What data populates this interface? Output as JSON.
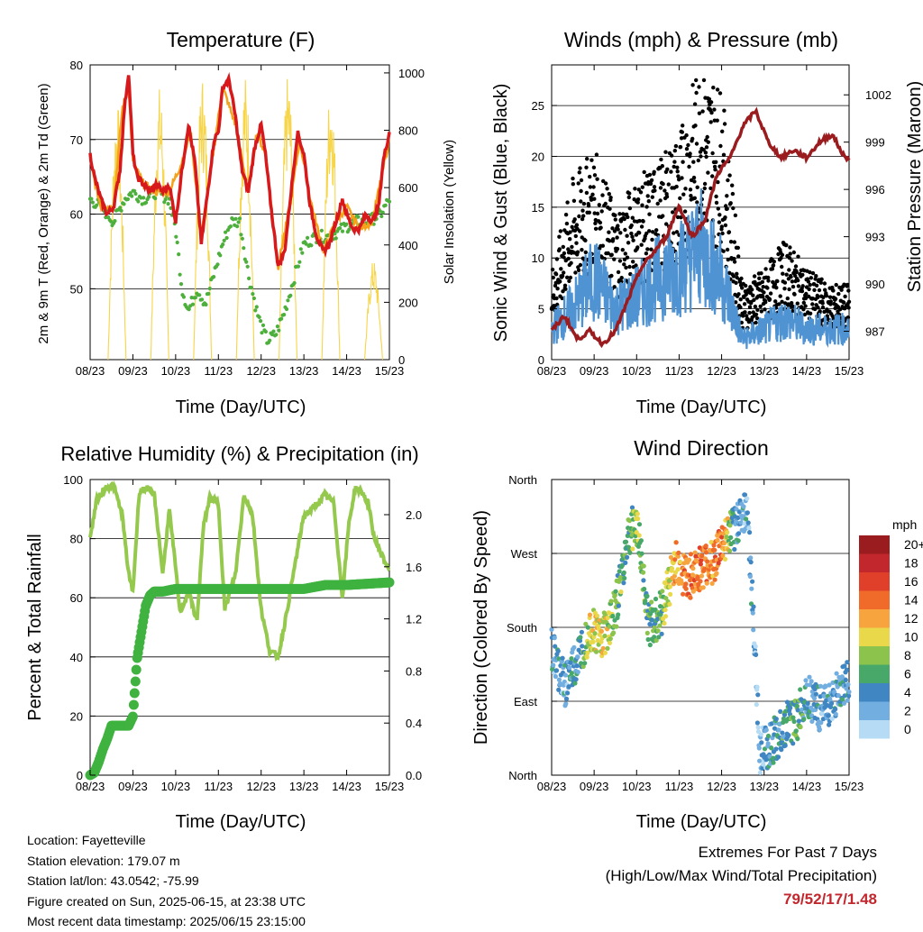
{
  "station": {
    "location": "Location: Fayetteville",
    "elevation": "Station elevation: 179.07 m",
    "latlon": "Station lat/lon: 43.0542; -75.99",
    "created": "Figure created on Sun, 2025-06-15, at 23:38 UTC",
    "timestamp": "Most recent data timestamp: 2025/06/15 23:15:00"
  },
  "extremes": {
    "title": "Extremes For Past 7 Days",
    "subtitle": "(High/Low/Max Wind/Total Precipitation)",
    "values": "79/52/17/1.48"
  },
  "colors": {
    "temp_2m": "#d7191c",
    "temp_9m": "#f4a21a",
    "dewpoint": "#4daf3c",
    "solar": "#f7d54a",
    "wind": "#4f93d3",
    "gust": "#000000",
    "pressure": "#9b1c1f",
    "rh": "#94c94d",
    "precip": "#3fb23f"
  },
  "chart_data": [
    {
      "type": "line",
      "title": "Temperature (F)",
      "xlabel": "Time (Day/UTC)",
      "ylabel": "2m & 9m T (Red, Orange) & 2m Td (Green)",
      "ylabel_right": "Solar Insolation (Yellow)",
      "x_ticks": [
        "08/23",
        "09/23",
        "10/23",
        "11/23",
        "12/23",
        "13/23",
        "14/23",
        "15/23"
      ],
      "y_ticks": [
        50,
        60,
        70,
        80
      ],
      "y2_ticks": [
        0,
        200,
        400,
        600,
        800,
        1000
      ],
      "ylim": [
        40.5,
        80
      ],
      "y2lim": [
        0,
        1028
      ],
      "series": [
        {
          "name": "2m T",
          "x": [
            0,
            0.1,
            0.25,
            0.4,
            0.55,
            0.7,
            0.8,
            0.9,
            1.0,
            1.1,
            1.25,
            1.4,
            1.55,
            1.7,
            1.85,
            2.0,
            2.15,
            2.3,
            2.45,
            2.6,
            2.75,
            2.9,
            3.0,
            3.1,
            3.25,
            3.4,
            3.55,
            3.7,
            3.85,
            4.0,
            4.1,
            4.25,
            4.4,
            4.55,
            4.7,
            4.85,
            5.0,
            5.15,
            5.3,
            5.45,
            5.6,
            5.75,
            5.9,
            6.0,
            6.15,
            6.3,
            6.45,
            6.6,
            6.75,
            6.85,
            7.0
          ],
          "y": [
            68,
            65,
            62,
            60,
            61,
            66,
            74,
            79,
            68,
            65,
            64,
            63,
            64,
            63,
            64,
            59,
            66,
            72,
            67,
            56,
            63,
            70,
            71,
            77,
            78,
            73,
            66,
            63,
            69,
            72,
            68,
            60,
            53,
            55,
            63,
            71,
            68,
            61,
            57,
            55,
            56,
            59,
            62,
            60,
            58,
            58,
            60,
            59,
            61,
            67,
            71
          ]
        },
        {
          "name": "9m T",
          "x": [
            0,
            0.25,
            0.55,
            0.75,
            0.9,
            1.0,
            1.25,
            1.55,
            1.85,
            2.15,
            2.35,
            2.6,
            2.9,
            3.1,
            3.4,
            3.7,
            3.9,
            4.1,
            4.4,
            4.7,
            4.9,
            5.15,
            5.45,
            5.75,
            6.0,
            6.3,
            6.6,
            6.85,
            7.0
          ],
          "y": [
            67,
            61,
            61,
            74,
            77,
            67,
            64,
            63,
            63,
            67,
            71,
            57,
            69,
            77,
            72,
            63,
            71,
            68,
            53,
            62,
            70,
            62,
            55,
            59,
            61,
            58,
            59,
            66,
            70
          ]
        },
        {
          "name": "2m Td",
          "x": [
            0,
            0.25,
            0.55,
            0.8,
            1.0,
            1.25,
            1.55,
            1.85,
            2.0,
            2.15,
            2.3,
            2.5,
            2.7,
            2.9,
            3.1,
            3.3,
            3.5,
            3.7,
            3.9,
            4.0,
            4.15,
            4.35,
            4.55,
            4.75,
            5.0,
            5.3,
            5.6,
            5.9,
            6.2,
            6.5,
            6.8,
            7.0
          ],
          "y": [
            62,
            61,
            59,
            62,
            63,
            62,
            63,
            62,
            58,
            50,
            47,
            50,
            48,
            52,
            56,
            59,
            59,
            52,
            47,
            45,
            43,
            44,
            47,
            51,
            56,
            57,
            57,
            58,
            59,
            59,
            60,
            62
          ]
        },
        {
          "name": "Solar Insolation",
          "x": [
            0,
            1,
            2,
            3,
            4,
            5,
            6,
            7
          ],
          "peaks": [
            900,
            960,
            1000,
            1000,
            1000,
            980,
            350,
            650
          ]
        }
      ]
    },
    {
      "type": "scatter",
      "title": "Winds (mph) & Pressure (mb)",
      "xlabel": "Time (Day/UTC)",
      "ylabel": "Sonic Wind & Gust (Blue, Black)",
      "ylabel_right": "Station Pressure (Maroon)",
      "x_ticks": [
        "08/23",
        "09/23",
        "10/23",
        "11/23",
        "12/23",
        "13/23",
        "14/23",
        "15/23"
      ],
      "y_ticks": [
        0,
        5,
        10,
        15,
        20,
        25
      ],
      "y2_ticks": [
        987,
        990,
        993,
        996,
        999,
        1002
      ],
      "ylim": [
        0,
        29
      ],
      "y2lim": [
        985.2,
        1003.9
      ],
      "series": [
        {
          "name": "Wind",
          "x": [
            0,
            0.5,
            1.0,
            1.5,
            2.0,
            2.5,
            3.0,
            3.5,
            4.0,
            4.5,
            5.0,
            5.5,
            6.0,
            6.5,
            7.0
          ],
          "y": [
            3,
            5,
            8,
            5,
            6,
            8,
            9,
            11,
            8,
            2,
            3,
            4,
            3,
            3,
            3
          ]
        },
        {
          "name": "Gust",
          "x": [
            0,
            0.5,
            1.0,
            1.5,
            2.0,
            2.5,
            3.0,
            3.5,
            4.0,
            4.5,
            5.0,
            5.5,
            6.0,
            6.5,
            7.0
          ],
          "y": [
            6,
            12,
            14,
            10,
            12,
            13,
            15,
            20,
            18,
            5,
            6,
            8,
            6,
            5,
            5
          ]
        },
        {
          "name": "Pressure",
          "x": [
            0,
            0.3,
            0.6,
            0.9,
            1.2,
            1.5,
            1.8,
            2.1,
            2.4,
            2.7,
            3.0,
            3.3,
            3.6,
            3.9,
            4.2,
            4.5,
            4.8,
            5.1,
            5.4,
            5.7,
            6.0,
            6.3,
            6.6,
            6.9,
            7.0
          ],
          "y": [
            987,
            988,
            986.5,
            987,
            986.2,
            987,
            989,
            991,
            992,
            993,
            995,
            993,
            994,
            997,
            998,
            1000,
            1001,
            999,
            998,
            998.5,
            998,
            999,
            999.5,
            998,
            998
          ]
        }
      ]
    },
    {
      "type": "line",
      "title": "Relative Humidity (%) & Precipitation (in)",
      "xlabel": "Time (Day/UTC)",
      "ylabel": "Percent & Total Rainfall",
      "x_ticks": [
        "08/23",
        "09/23",
        "10/23",
        "11/23",
        "12/23",
        "13/23",
        "14/23",
        "15/23"
      ],
      "y_ticks": [
        0,
        20,
        40,
        60,
        80,
        100
      ],
      "y2_ticks": [
        "0.0",
        "0.4",
        "0.8",
        "1.2",
        "1.6",
        "2.0"
      ],
      "ylim": [
        0,
        100
      ],
      "y2lim": [
        0,
        2.27
      ],
      "series": [
        {
          "name": "Relative Humidity",
          "x": [
            0,
            0.15,
            0.35,
            0.55,
            0.75,
            0.9,
            1.0,
            1.15,
            1.3,
            1.5,
            1.7,
            1.85,
            2.0,
            2.1,
            2.3,
            2.5,
            2.65,
            2.8,
            3.0,
            3.15,
            3.4,
            3.6,
            3.8,
            4.0,
            4.2,
            4.4,
            4.6,
            4.8,
            5.0,
            5.2,
            5.5,
            5.7,
            5.9,
            6.05,
            6.2,
            6.35,
            6.5,
            6.65,
            6.8,
            6.9,
            7.0
          ],
          "y": [
            80,
            93,
            97,
            98,
            88,
            68,
            62,
            96,
            97,
            95,
            68,
            90,
            70,
            55,
            62,
            52,
            84,
            94,
            92,
            56,
            68,
            95,
            88,
            56,
            42,
            40,
            55,
            72,
            88,
            90,
            95,
            92,
            60,
            85,
            97,
            96,
            92,
            80,
            75,
            72,
            70
          ]
        },
        {
          "name": "Total Precipitation",
          "x": [
            0,
            0.1,
            0.2,
            0.3,
            0.4,
            0.5,
            0.55,
            0.7,
            0.9,
            1.0,
            1.1,
            1.2,
            1.3,
            1.4,
            1.5,
            1.7,
            2.0,
            3.0,
            4.0,
            5.0,
            5.5,
            6.0,
            7.0
          ],
          "y": [
            0,
            0.02,
            0.1,
            0.2,
            0.28,
            0.38,
            0.38,
            0.38,
            0.38,
            0.45,
            0.9,
            1.1,
            1.3,
            1.38,
            1.41,
            1.41,
            1.43,
            1.43,
            1.43,
            1.43,
            1.46,
            1.46,
            1.48
          ]
        }
      ]
    },
    {
      "type": "scatter",
      "title": "Wind Direction",
      "xlabel": "Time (Day/UTC)",
      "ylabel": "Direction (Colored By Speed)",
      "x_ticks": [
        "08/23",
        "09/23",
        "10/23",
        "11/23",
        "12/23",
        "13/23",
        "14/23",
        "15/23"
      ],
      "y_ticks": [
        "North",
        "East",
        "South",
        "West",
        "North"
      ],
      "ylim": [
        0,
        360
      ],
      "legend": {
        "title": "mph",
        "labels": [
          "20+",
          "18",
          "16",
          "14",
          "12",
          "10",
          "8",
          "6",
          "4",
          "2",
          "0"
        ],
        "colors": [
          "#9b1c1f",
          "#c1272d",
          "#e0402a",
          "#f06a2a",
          "#f7a43f",
          "#e8d84a",
          "#8cc34d",
          "#48a86a",
          "#3f86c2",
          "#72afe0",
          "#b6dcf5"
        ]
      },
      "series": [
        {
          "name": "Direction",
          "x": [
            0,
            0.3,
            0.6,
            0.9,
            1.2,
            1.5,
            1.8,
            2.0,
            2.3,
            2.6,
            2.9,
            3.2,
            3.5,
            3.8,
            4.0,
            4.3,
            4.6,
            4.9,
            5.2,
            5.5,
            5.8,
            6.0,
            6.3,
            6.6,
            6.9,
            7.0
          ],
          "y": [
            150,
            110,
            140,
            180,
            170,
            200,
            290,
            310,
            180,
            200,
            260,
            240,
            250,
            260,
            280,
            300,
            330,
            30,
            40,
            60,
            70,
            100,
            80,
            90,
            110,
            120
          ],
          "speed": [
            3,
            3,
            4,
            9,
            10,
            7,
            6,
            8,
            6,
            7,
            12,
            13,
            14,
            12,
            15,
            4,
            3,
            2,
            4,
            5,
            6,
            4,
            3,
            3,
            4,
            4
          ]
        }
      ]
    }
  ]
}
